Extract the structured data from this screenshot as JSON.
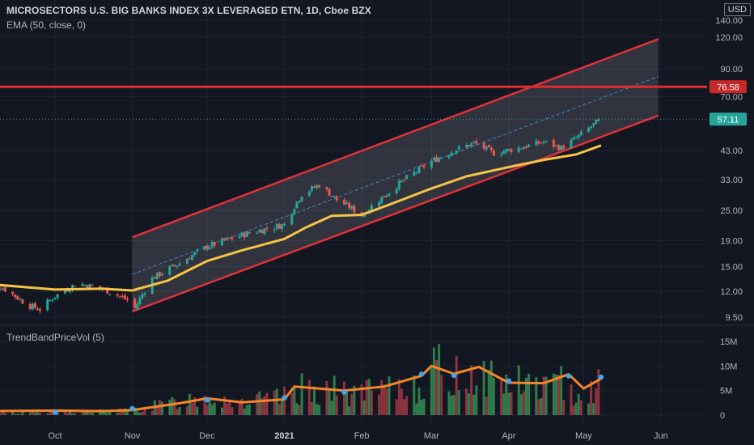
{
  "header": {
    "title": "MICROSECTORS U.S. BIG BANKS INDEX 3X LEVERAGED ETN, 1D, Cboe BZX",
    "indicator": "EMA (50, close, 0)",
    "volume_indicator": "TrendBandPriceVol (5)",
    "currency": "USD"
  },
  "colors": {
    "background": "#131722",
    "grid": "#1f2330",
    "up": "#26a69a",
    "down": "#ef5350",
    "ema": "#f6c344",
    "channel": "#e03238",
    "resistance": "#e22d2d",
    "midline": "#3d8bd9",
    "vol_up": "#2e7d4a",
    "vol_down": "#8d3440",
    "vol_ma": "#f5842a",
    "dots": "#42a5f5",
    "last_price": "#26a69a"
  },
  "chart_data": [
    {
      "type": "candlestick",
      "price_axis_ticks": [
        "140.00",
        "120.00",
        "90.00",
        "70.00",
        "57.11",
        "43.00",
        "33.00",
        "25.00",
        "19.00",
        "15.00",
        "12.00",
        "9.50"
      ],
      "price_ticks": [
        140,
        120,
        90,
        70,
        43,
        33,
        25,
        19,
        15,
        12,
        9.5
      ],
      "x_ticks": [
        "Oct",
        "Nov",
        "Dec",
        "2021",
        "Feb",
        "Mar",
        "Apr",
        "May",
        "Jun"
      ],
      "x_tick_dates": [
        "2020-10-01",
        "2020-11-01",
        "2020-12-01",
        "2021-01-01",
        "2021-02-01",
        "2021-03-01",
        "2021-04-01",
        "2021-05-01",
        "2021-06-01"
      ],
      "resistance": 76.58,
      "resistance_label": "76.58",
      "last_price": 57.11,
      "last_price_label": "57.11",
      "scale": "log",
      "channel": {
        "start": "2020-11-01",
        "end": "2021-05-31",
        "upper_start": 19.6,
        "upper_end": 118,
        "lower_start": 10.0,
        "lower_end": 59,
        "mid_start": 14.0,
        "mid_end": 84
      },
      "ema_points": [
        [
          "2020-09-01",
          12.9
        ],
        [
          "2020-10-01",
          12.2
        ],
        [
          "2020-10-20",
          12.3
        ],
        [
          "2020-11-01",
          12.1
        ],
        [
          "2020-11-15",
          13.2
        ],
        [
          "2020-12-01",
          15.8
        ],
        [
          "2020-12-15",
          17.4
        ],
        [
          "2021-01-01",
          19.3
        ],
        [
          "2021-01-10",
          21.5
        ],
        [
          "2021-01-20",
          23.8
        ],
        [
          "2021-02-01",
          24.0
        ],
        [
          "2021-02-15",
          27.0
        ],
        [
          "2021-03-01",
          30.5
        ],
        [
          "2021-03-15",
          34.0
        ],
        [
          "2021-04-01",
          37.0
        ],
        [
          "2021-04-15",
          39.5
        ],
        [
          "2021-04-28",
          41.5
        ],
        [
          "2021-05-08",
          45.0
        ]
      ],
      "price_points": [
        [
          "2020-09-01",
          12.8
        ],
        [
          "2020-09-10",
          12.4
        ],
        [
          "2020-09-20",
          10.6
        ],
        [
          "2020-09-25",
          10.2
        ],
        [
          "2020-10-01",
          11.5
        ],
        [
          "2020-10-10",
          12.9
        ],
        [
          "2020-10-20",
          12.3
        ],
        [
          "2020-10-31",
          11.0
        ],
        [
          "2020-11-02",
          10.3
        ],
        [
          "2020-11-09",
          13.5
        ],
        [
          "2020-11-20",
          15.5
        ],
        [
          "2020-12-01",
          18.0
        ],
        [
          "2020-12-15",
          20.0
        ],
        [
          "2021-01-01",
          22.0
        ],
        [
          "2021-01-08",
          29.0
        ],
        [
          "2021-01-15",
          31.5
        ],
        [
          "2021-01-22",
          27.5
        ],
        [
          "2021-02-01",
          24.0
        ],
        [
          "2021-02-10",
          28.5
        ],
        [
          "2021-02-20",
          34.0
        ],
        [
          "2021-03-01",
          39.0
        ],
        [
          "2021-03-10",
          43.0
        ],
        [
          "2021-03-18",
          46.0
        ],
        [
          "2021-03-26",
          42.0
        ],
        [
          "2021-04-05",
          44.0
        ],
        [
          "2021-04-15",
          46.5
        ],
        [
          "2021-04-22",
          44.0
        ],
        [
          "2021-04-28",
          48.0
        ],
        [
          "2021-05-08",
          57.0
        ]
      ]
    },
    {
      "type": "bar",
      "title": "TrendBandPriceVol (5)",
      "volume_ticks": [
        "15M",
        "10M",
        "5M",
        "0"
      ],
      "volume_tick_values": [
        15,
        10,
        5,
        0
      ],
      "volume_unit": "M",
      "volume_points": [
        [
          "2020-09-01",
          0.7
        ],
        [
          "2020-10-01",
          0.6
        ],
        [
          "2020-11-01",
          1.1
        ],
        [
          "2020-11-20",
          3.2
        ],
        [
          "2020-12-01",
          4.4
        ],
        [
          "2020-12-15",
          3.0
        ],
        [
          "2021-01-01",
          4.0
        ],
        [
          "2021-01-10",
          6.5
        ],
        [
          "2021-01-25",
          5.2
        ],
        [
          "2021-02-10",
          5.2
        ],
        [
          "2021-02-25",
          7.5
        ],
        [
          "2021-03-01",
          10.5
        ],
        [
          "2021-03-10",
          9.0
        ],
        [
          "2021-03-20",
          10.0
        ],
        [
          "2021-04-01",
          7.5
        ],
        [
          "2021-04-15",
          6.8
        ],
        [
          "2021-04-25",
          7.2
        ],
        [
          "2021-05-01",
          4.5
        ],
        [
          "2021-05-08",
          7.8
        ]
      ],
      "volume_ma_points": [
        [
          "2020-09-01",
          0.8
        ],
        [
          "2020-10-01",
          0.9
        ],
        [
          "2020-10-20",
          0.8
        ],
        [
          "2020-11-01",
          1.0
        ],
        [
          "2020-11-20",
          2.4
        ],
        [
          "2020-12-01",
          3.4
        ],
        [
          "2020-12-15",
          2.6
        ],
        [
          "2021-01-01",
          3.2
        ],
        [
          "2021-01-05",
          5.8
        ],
        [
          "2021-01-25",
          5.0
        ],
        [
          "2021-02-10",
          5.8
        ],
        [
          "2021-02-25",
          8.0
        ],
        [
          "2021-03-01",
          10.0
        ],
        [
          "2021-03-10",
          8.4
        ],
        [
          "2021-03-20",
          9.8
        ],
        [
          "2021-04-01",
          6.6
        ],
        [
          "2021-04-15",
          6.5
        ],
        [
          "2021-04-25",
          8.3
        ],
        [
          "2021-05-01",
          5.4
        ],
        [
          "2021-05-08",
          7.4
        ]
      ]
    }
  ]
}
